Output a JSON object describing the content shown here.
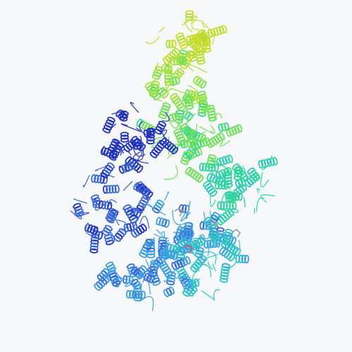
{
  "scene": {
    "subject": "protein-ribbon-structure",
    "background_color": "#f7f8f9",
    "chain_palette": [
      "#2233bb",
      "#3a66d6",
      "#3aa0e0",
      "#2ec2c6",
      "#31d59b",
      "#6ee05a",
      "#a5e03c",
      "#c7dc2a"
    ],
    "ligand_colors": [
      "#e0417a",
      "#9a9a9a"
    ]
  }
}
